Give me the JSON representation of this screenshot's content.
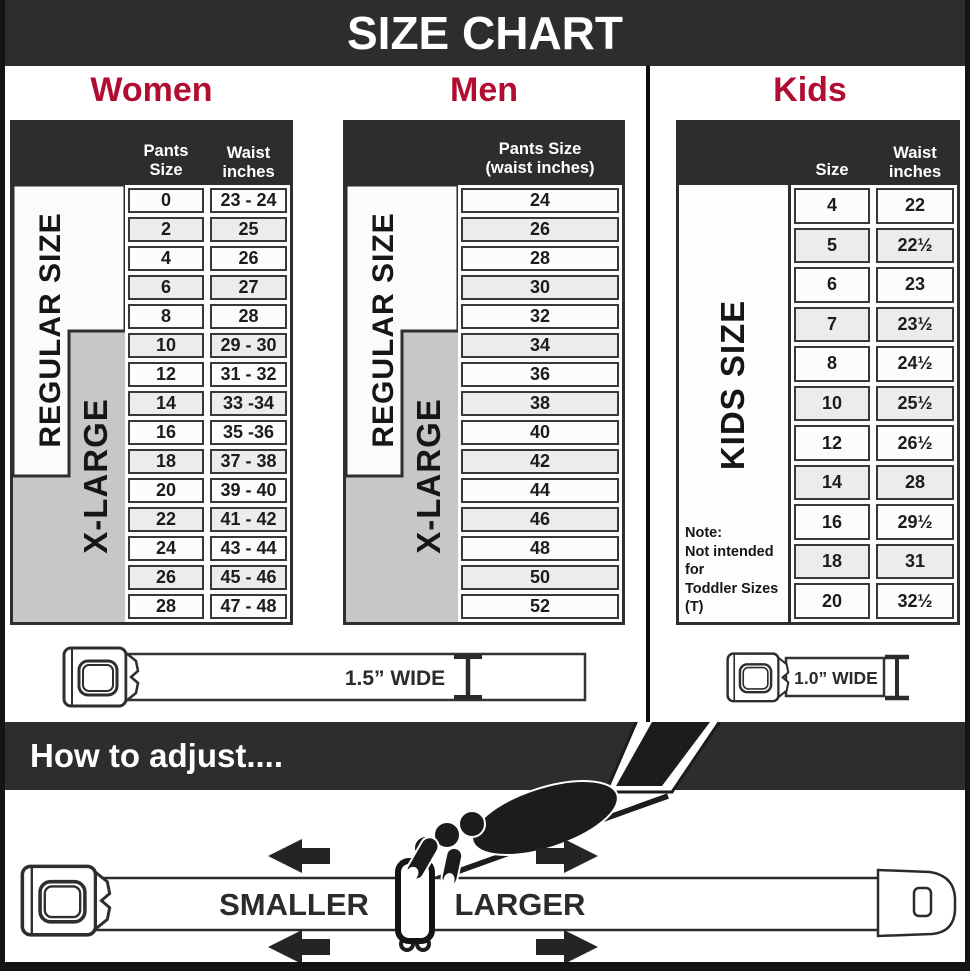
{
  "page_title": "SIZE CHART",
  "colors": {
    "band_dark": "#2d2d2d",
    "accent_red": "#b00d31",
    "table_line": "#383838",
    "xlarge_gray": "#c7c7c7",
    "row_alt": "#ececec"
  },
  "sections": {
    "women": {
      "title": "Women",
      "regular_label": "REGULAR SIZE",
      "xlarge_label": "X-LARGE",
      "col1_header": "Pants Size",
      "col2_header": "Waist inches",
      "rows": [
        {
          "pants_size": "0",
          "waist": "23 - 24"
        },
        {
          "pants_size": "2",
          "waist": "25"
        },
        {
          "pants_size": "4",
          "waist": "26"
        },
        {
          "pants_size": "6",
          "waist": "27"
        },
        {
          "pants_size": "8",
          "waist": "28"
        },
        {
          "pants_size": "10",
          "waist": "29 - 30"
        },
        {
          "pants_size": "12",
          "waist": "31 - 32"
        },
        {
          "pants_size": "14",
          "waist": "33 -34"
        },
        {
          "pants_size": "16",
          "waist": "35 -36"
        },
        {
          "pants_size": "18",
          "waist": "37 - 38"
        },
        {
          "pants_size": "20",
          "waist": "39 - 40"
        },
        {
          "pants_size": "22",
          "waist": "41 - 42"
        },
        {
          "pants_size": "24",
          "waist": "43 - 44"
        },
        {
          "pants_size": "26",
          "waist": "45 - 46"
        },
        {
          "pants_size": "28",
          "waist": "47 - 48"
        }
      ],
      "belt_width_label": "1.5” WIDE"
    },
    "men": {
      "title": "Men",
      "regular_label": "REGULAR SIZE",
      "xlarge_label": "X-LARGE",
      "header_line1": "Pants Size",
      "header_line2": "(waist inches)",
      "rows": [
        "24",
        "26",
        "28",
        "30",
        "32",
        "34",
        "36",
        "38",
        "40",
        "42",
        "44",
        "46",
        "48",
        "50",
        "52"
      ]
    },
    "kids": {
      "title": "Kids",
      "side_label": "KIDS SIZE",
      "col1_header": "Size",
      "col2_header": "Waist inches",
      "rows": [
        {
          "size": "4",
          "waist": "22"
        },
        {
          "size": "5",
          "waist": "22½"
        },
        {
          "size": "6",
          "waist": "23"
        },
        {
          "size": "7",
          "waist": "23½"
        },
        {
          "size": "8",
          "waist": "24½"
        },
        {
          "size": "10",
          "waist": "25½"
        },
        {
          "size": "12",
          "waist": "26½"
        },
        {
          "size": "14",
          "waist": "28"
        },
        {
          "size": "16",
          "waist": "29½"
        },
        {
          "size": "18",
          "waist": "31"
        },
        {
          "size": "20",
          "waist": "32½"
        }
      ],
      "note_lines": [
        "Note:",
        "Not intended for",
        "Toddler Sizes (T)"
      ],
      "belt_width_label": "1.0” WIDE"
    }
  },
  "adjust": {
    "title": "How to adjust....",
    "smaller_label": "SMALLER",
    "larger_label": "LARGER"
  }
}
